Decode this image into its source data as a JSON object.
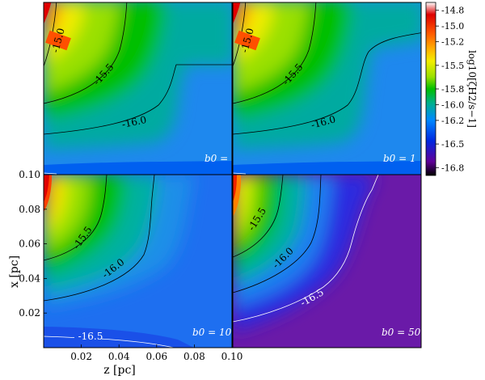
{
  "chart_data": {
    "type": "heatmap",
    "xlabel": "z [pc]",
    "ylabel": "x [pc]",
    "xlim": [
      0.0,
      0.1
    ],
    "ylim": [
      0.0,
      0.1
    ],
    "x_ticks": [
      "0.02",
      "0.04",
      "0.06",
      "0.08",
      "0.10"
    ],
    "y_ticks": [
      "0.02",
      "0.04",
      "0.06",
      "0.08",
      "0.10"
    ],
    "colorbar": {
      "label": "log10[ζH2/s−1]",
      "ticks": [
        "-14.8",
        "-15.0",
        "-15.2",
        "-15.5",
        "-15.8",
        "-16.0",
        "-16.2",
        "-16.5",
        "-16.8"
      ],
      "range": [
        -16.9,
        -14.7
      ],
      "colors": [
        "#ffffff",
        "#dd0000",
        "#ff5a00",
        "#ffb000",
        "#f2ee00",
        "#9ae000",
        "#00bf00",
        "#00b08a",
        "#0088ff",
        "#0028e0",
        "#600098",
        "#000000"
      ]
    },
    "panels": [
      {
        "b0_label": "b0 = 0",
        "b0": 0,
        "contours": [
          "-15.0",
          "-15.5",
          "-16.0"
        ]
      },
      {
        "b0_label": "b0 = 1",
        "b0": 1,
        "contours": [
          "-15.0",
          "-15.5",
          "-16.0"
        ]
      },
      {
        "b0_label": "b0 = 10",
        "b0": 10,
        "contours": [
          "-15.5",
          "-16.0",
          "-16.5"
        ]
      },
      {
        "b0_label": "b0 = 50",
        "b0": 50,
        "contours": [
          "-15.5",
          "-16.0",
          "-16.5"
        ]
      }
    ]
  }
}
